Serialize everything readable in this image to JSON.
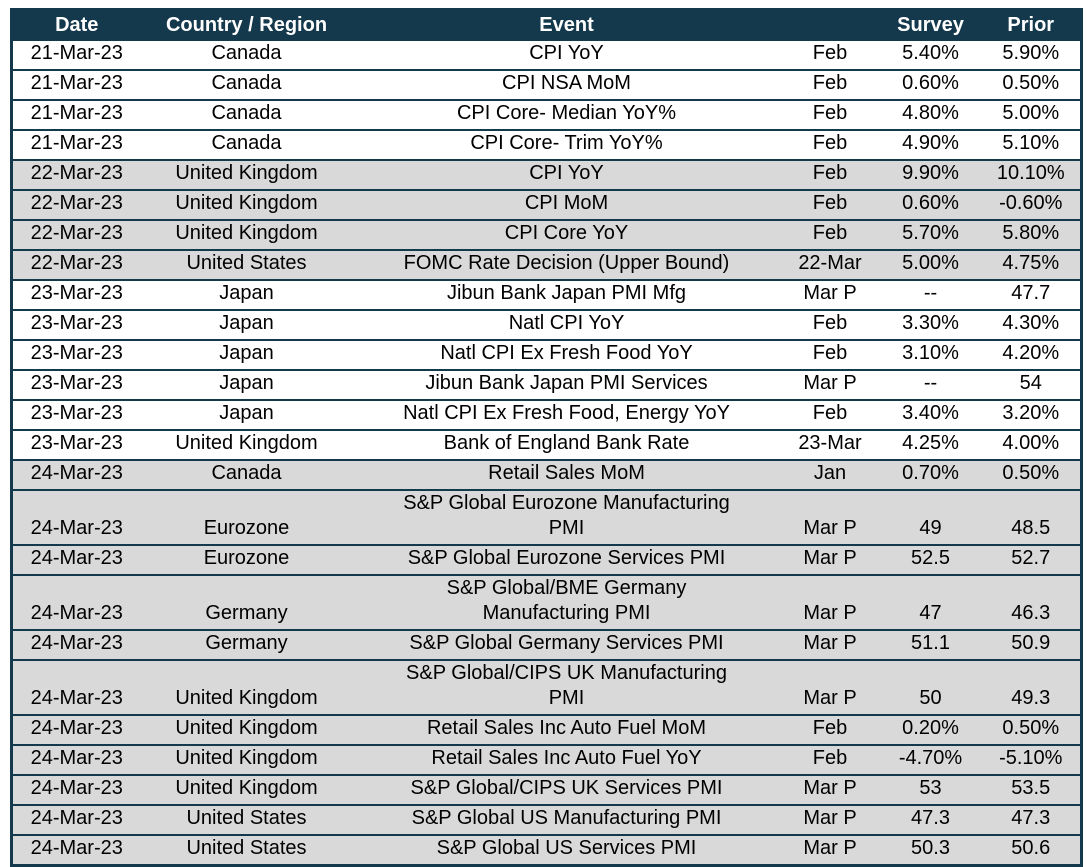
{
  "chart_data": {
    "type": "table",
    "columns": [
      {
        "id": "date",
        "label": "Date"
      },
      {
        "id": "country",
        "label": "Country / Region"
      },
      {
        "id": "event",
        "label": "Event"
      },
      {
        "id": "period",
        "label": ""
      },
      {
        "id": "survey",
        "label": "Survey"
      },
      {
        "id": "prior",
        "label": "Prior"
      }
    ],
    "rows": [
      {
        "date": "21-Mar-23",
        "country": "Canada",
        "event": "CPI YoY",
        "period": "Feb",
        "survey": "5.40%",
        "prior": "5.90%"
      },
      {
        "date": "21-Mar-23",
        "country": "Canada",
        "event": "CPI NSA MoM",
        "period": "Feb",
        "survey": "0.60%",
        "prior": "0.50%"
      },
      {
        "date": "21-Mar-23",
        "country": "Canada",
        "event": "CPI Core- Median YoY%",
        "period": "Feb",
        "survey": "4.80%",
        "prior": "5.00%"
      },
      {
        "date": "21-Mar-23",
        "country": "Canada",
        "event": "CPI Core- Trim YoY%",
        "period": "Feb",
        "survey": "4.90%",
        "prior": "5.10%"
      },
      {
        "date": "22-Mar-23",
        "country": "United Kingdom",
        "event": "CPI YoY",
        "period": "Feb",
        "survey": "9.90%",
        "prior": "10.10%"
      },
      {
        "date": "22-Mar-23",
        "country": "United Kingdom",
        "event": "CPI MoM",
        "period": "Feb",
        "survey": "0.60%",
        "prior": "-0.60%"
      },
      {
        "date": "22-Mar-23",
        "country": "United Kingdom",
        "event": "CPI Core YoY",
        "period": "Feb",
        "survey": "5.70%",
        "prior": "5.80%"
      },
      {
        "date": "22-Mar-23",
        "country": "United States",
        "event": "FOMC Rate Decision (Upper Bound)",
        "period": "22-Mar",
        "survey": "5.00%",
        "prior": "4.75%"
      },
      {
        "date": "23-Mar-23",
        "country": "Japan",
        "event": "Jibun Bank Japan PMI Mfg",
        "period": "Mar P",
        "survey": "--",
        "prior": "47.7"
      },
      {
        "date": "23-Mar-23",
        "country": "Japan",
        "event": "Natl CPI YoY",
        "period": "Feb",
        "survey": "3.30%",
        "prior": "4.30%"
      },
      {
        "date": "23-Mar-23",
        "country": "Japan",
        "event": "Natl CPI Ex Fresh Food YoY",
        "period": "Feb",
        "survey": "3.10%",
        "prior": "4.20%"
      },
      {
        "date": "23-Mar-23",
        "country": "Japan",
        "event": "Jibun Bank Japan PMI Services",
        "period": "Mar P",
        "survey": "--",
        "prior": "54"
      },
      {
        "date": "23-Mar-23",
        "country": "Japan",
        "event": "Natl CPI Ex Fresh Food, Energy YoY",
        "period": "Feb",
        "survey": "3.40%",
        "prior": "3.20%"
      },
      {
        "date": "23-Mar-23",
        "country": "United Kingdom",
        "event": "Bank of England Bank Rate",
        "period": "23-Mar",
        "survey": "4.25%",
        "prior": "4.00%"
      },
      {
        "date": "24-Mar-23",
        "country": "Canada",
        "event": "Retail Sales MoM",
        "period": "Jan",
        "survey": "0.70%",
        "prior": "0.50%"
      },
      {
        "date": "24-Mar-23",
        "country": "Eurozone",
        "event": "S&P Global Eurozone Manufacturing\nPMI",
        "period": "Mar P",
        "survey": "49",
        "prior": "48.5"
      },
      {
        "date": "24-Mar-23",
        "country": "Eurozone",
        "event": "S&P Global Eurozone Services PMI",
        "period": "Mar P",
        "survey": "52.5",
        "prior": "52.7"
      },
      {
        "date": "24-Mar-23",
        "country": "Germany",
        "event": "S&P Global/BME Germany\nManufacturing PMI",
        "period": "Mar P",
        "survey": "47",
        "prior": "46.3"
      },
      {
        "date": "24-Mar-23",
        "country": "Germany",
        "event": "S&P Global Germany Services PMI",
        "period": "Mar P",
        "survey": "51.1",
        "prior": "50.9"
      },
      {
        "date": "24-Mar-23",
        "country": "United Kingdom",
        "event": "S&P Global/CIPS UK Manufacturing\nPMI",
        "period": "Mar P",
        "survey": "50",
        "prior": "49.3"
      },
      {
        "date": "24-Mar-23",
        "country": "United Kingdom",
        "event": "Retail Sales Inc Auto Fuel MoM",
        "period": "Feb",
        "survey": "0.20%",
        "prior": "0.50%"
      },
      {
        "date": "24-Mar-23",
        "country": "United Kingdom",
        "event": "Retail Sales Inc Auto Fuel YoY",
        "period": "Feb",
        "survey": "-4.70%",
        "prior": "-5.10%"
      },
      {
        "date": "24-Mar-23",
        "country": "United Kingdom",
        "event": "S&P Global/CIPS UK Services PMI",
        "period": "Mar P",
        "survey": "53",
        "prior": "53.5"
      },
      {
        "date": "24-Mar-23",
        "country": "United States",
        "event": "S&P Global US Manufacturing PMI",
        "period": "Mar P",
        "survey": "47.3",
        "prior": "47.3"
      },
      {
        "date": "24-Mar-23",
        "country": "United States",
        "event": "S&P Global US Services PMI",
        "period": "Mar P",
        "survey": "50.3",
        "prior": "50.6"
      }
    ],
    "layout": {
      "legend": "none",
      "grid": "horizontal row borders only",
      "row_banding": "alternates per date group: 21-Mar white, 22-Mar gray, 23-Mar white, 24-Mar gray"
    },
    "colors": {
      "header_bg": "#15394C",
      "header_text": "#FFFFFF",
      "band_row_bg": "#D9D9D9",
      "plain_row_bg": "#FFFFFF",
      "border": "#15394C",
      "body_text": "#000000"
    }
  }
}
